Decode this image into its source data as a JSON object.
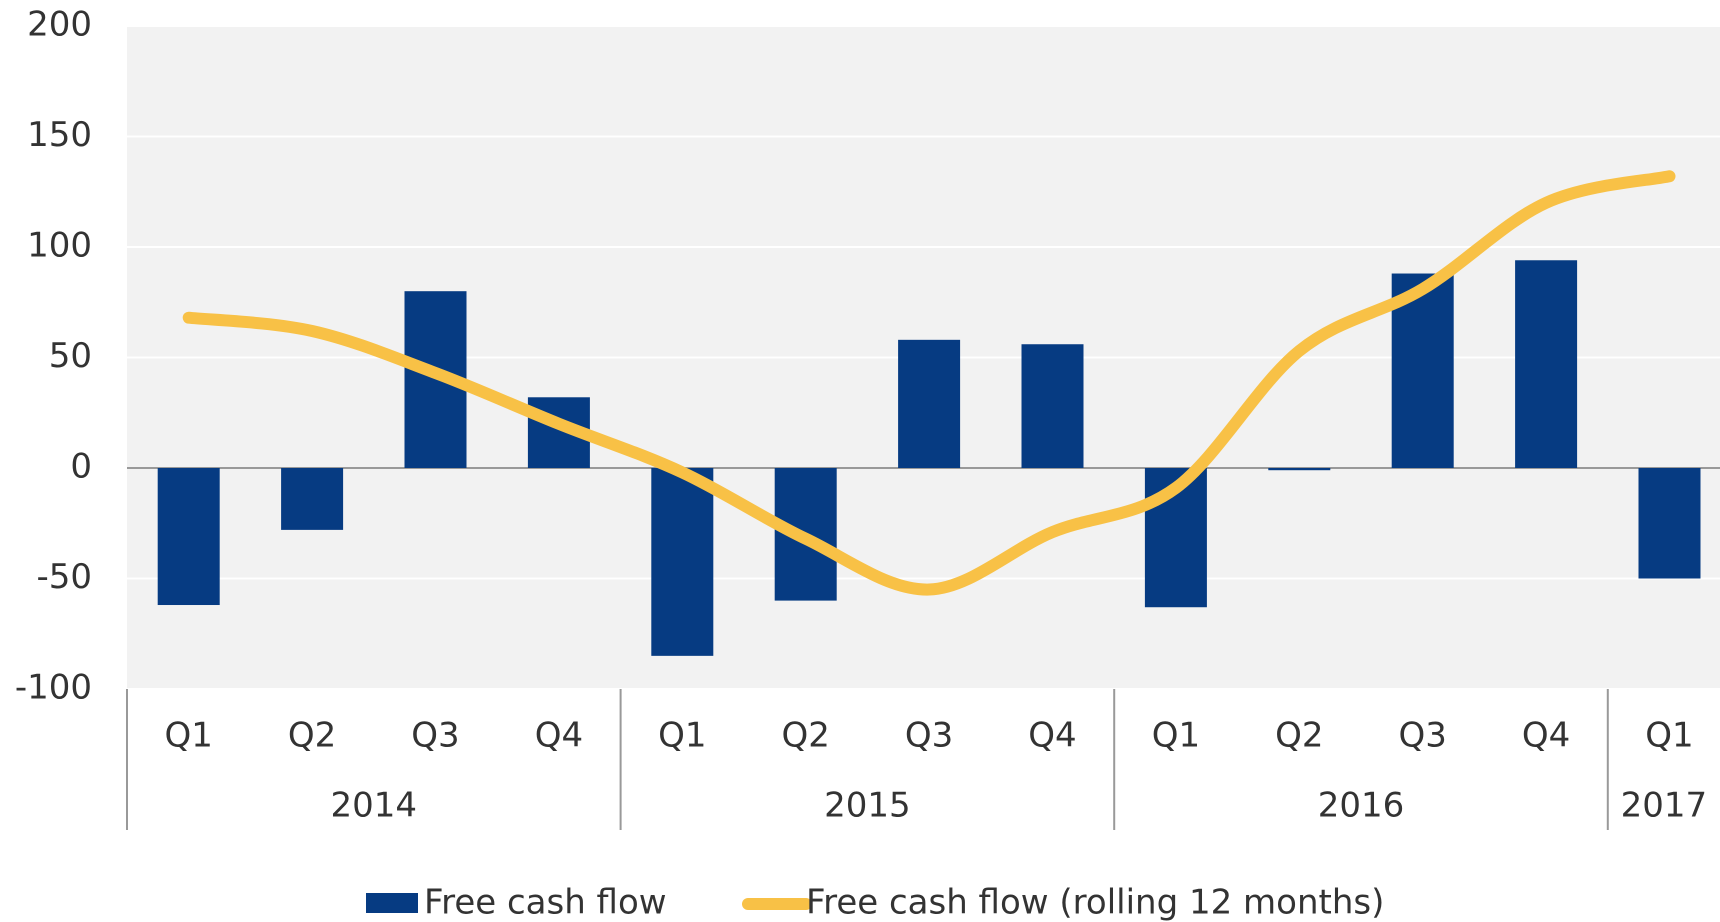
{
  "chart_data": {
    "type": "bar_line",
    "categories": [
      {
        "quarter": "Q1",
        "year": "2014"
      },
      {
        "quarter": "Q2",
        "year": "2014"
      },
      {
        "quarter": "Q3",
        "year": "2014"
      },
      {
        "quarter": "Q4",
        "year": "2014"
      },
      {
        "quarter": "Q1",
        "year": "2015"
      },
      {
        "quarter": "Q2",
        "year": "2015"
      },
      {
        "quarter": "Q3",
        "year": "2015"
      },
      {
        "quarter": "Q4",
        "year": "2015"
      },
      {
        "quarter": "Q1",
        "year": "2016"
      },
      {
        "quarter": "Q2",
        "year": "2016"
      },
      {
        "quarter": "Q3",
        "year": "2016"
      },
      {
        "quarter": "Q4",
        "year": "2016"
      },
      {
        "quarter": "Q1",
        "year": "2017"
      }
    ],
    "series": [
      {
        "name": "Free cash flow",
        "type": "bar",
        "color": "#063b82",
        "values": [
          -62,
          -28,
          80,
          32,
          -85,
          -60,
          58,
          56,
          -63,
          -1,
          88,
          94,
          -50
        ]
      },
      {
        "name": "Free cash flow (rolling 12 months)",
        "type": "line",
        "color": "#f8c146",
        "values": [
          68,
          62,
          43,
          20,
          -2,
          -32,
          -55,
          -29,
          -9,
          53,
          81,
          120,
          132
        ]
      }
    ],
    "ylim": [
      -100,
      200
    ],
    "yticks": [
      -100,
      -50,
      0,
      50,
      100,
      150,
      200
    ],
    "grid": true,
    "legend": "bottom"
  }
}
